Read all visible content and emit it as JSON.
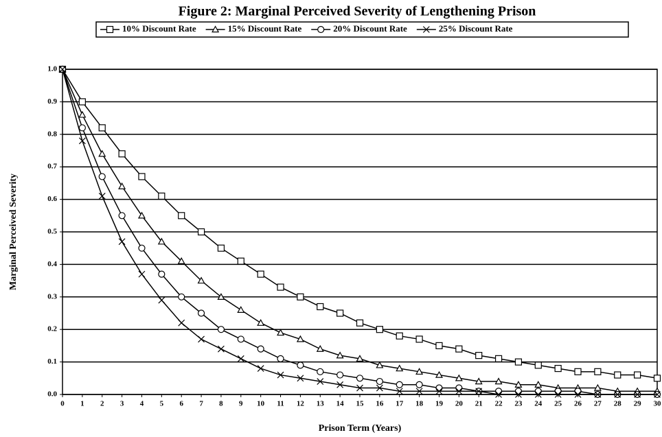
{
  "chart_data": {
    "type": "line",
    "title": "Figure 2: Marginal Perceived Severity of Lengthening Prison",
    "x_label": "Prison Term (Years)",
    "y_label": "Marginal Perceived Severity",
    "x": [
      0,
      1,
      2,
      3,
      4,
      5,
      6,
      7,
      8,
      9,
      10,
      11,
      12,
      13,
      14,
      15,
      16,
      17,
      18,
      19,
      20,
      21,
      22,
      23,
      24,
      25,
      26,
      27,
      28,
      29,
      30
    ],
    "series": [
      {
        "name": "10% Discount Rate",
        "color": "#000000",
        "marker": "square",
        "values": [
          1.0,
          0.9,
          0.82,
          0.74,
          0.67,
          0.61,
          0.55,
          0.5,
          0.45,
          0.41,
          0.37,
          0.33,
          0.3,
          0.27,
          0.25,
          0.22,
          0.2,
          0.18,
          0.17,
          0.15,
          0.14,
          0.12,
          0.11,
          0.1,
          0.09,
          0.08,
          0.07,
          0.07,
          0.06,
          0.06,
          0.05
        ]
      },
      {
        "name": "15% Discount Rate",
        "color": "#000000",
        "marker": "triangle",
        "values": [
          1.0,
          0.86,
          0.74,
          0.64,
          0.55,
          0.47,
          0.41,
          0.35,
          0.3,
          0.26,
          0.22,
          0.19,
          0.17,
          0.14,
          0.12,
          0.11,
          0.09,
          0.08,
          0.07,
          0.06,
          0.05,
          0.04,
          0.04,
          0.03,
          0.03,
          0.02,
          0.02,
          0.02,
          0.01,
          0.01,
          0.01
        ]
      },
      {
        "name": "20% Discount Rate",
        "color": "#000000",
        "marker": "circle",
        "values": [
          1.0,
          0.82,
          0.67,
          0.55,
          0.45,
          0.37,
          0.3,
          0.25,
          0.2,
          0.17,
          0.14,
          0.11,
          0.09,
          0.07,
          0.06,
          0.05,
          0.04,
          0.03,
          0.03,
          0.02,
          0.02,
          0.01,
          0.01,
          0.01,
          0.01,
          0.01,
          0.01,
          0,
          0,
          0,
          0
        ]
      },
      {
        "name": "25% Discount Rate",
        "color": "#000000",
        "marker": "cross",
        "values": [
          1.0,
          0.78,
          0.61,
          0.47,
          0.37,
          0.29,
          0.22,
          0.17,
          0.14,
          0.11,
          0.08,
          0.06,
          0.05,
          0.04,
          0.03,
          0.02,
          0.02,
          0.01,
          0.01,
          0.01,
          0.01,
          0.01,
          0,
          0,
          0,
          0,
          0,
          0,
          0,
          0,
          0
        ]
      }
    ],
    "xlim": [
      0,
      30
    ],
    "xticks": [
      0,
      1,
      2,
      3,
      4,
      5,
      6,
      7,
      8,
      9,
      10,
      11,
      12,
      13,
      14,
      15,
      16,
      17,
      18,
      19,
      20,
      21,
      22,
      23,
      24,
      25,
      26,
      27,
      28,
      29,
      30
    ],
    "ylim": [
      0,
      1
    ],
    "yticks": [
      {
        "value": 0,
        "label": "0.0"
      },
      0.1,
      0.2,
      0.3,
      0.4,
      0.5,
      0.6,
      0.7,
      0.8,
      0.9,
      {
        "value": 1,
        "label": "1.0"
      }
    ],
    "grid": true,
    "legend": "top"
  }
}
